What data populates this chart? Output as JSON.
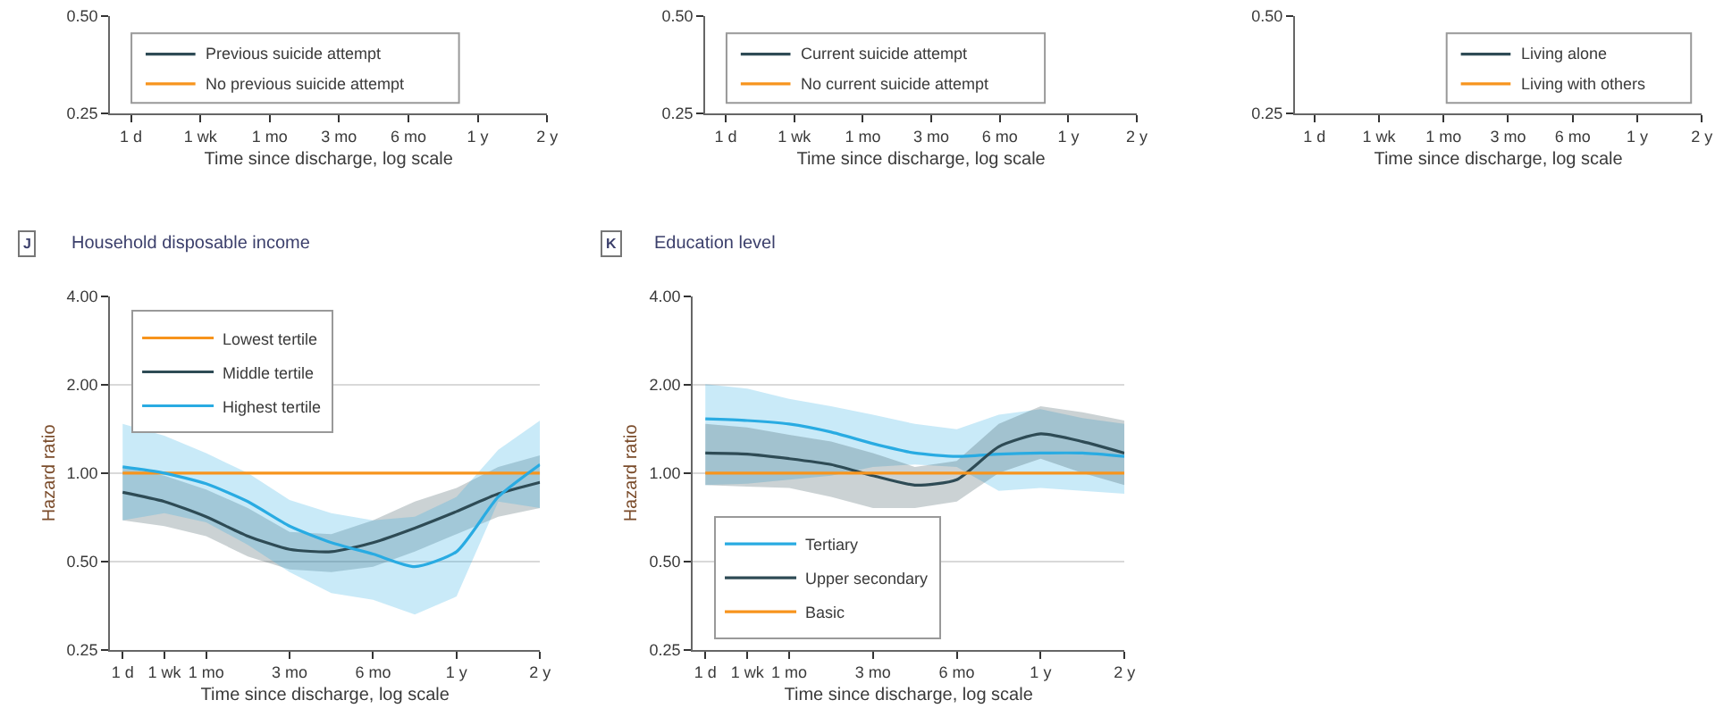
{
  "chart_data": [
    {
      "type": "line",
      "xlabel": "Time since discharge, log scale",
      "log": "y",
      "legend": "bottom left",
      "categories": [
        "1 d",
        "1 wk",
        "1 mo",
        "3 mo",
        "6 mo",
        "1 y",
        "2 y"
      ],
      "ylim": [
        0.25,
        0.5
      ],
      "yticks": [
        {
          "value": 0.25,
          "label": "0.25"
        },
        {
          "value": 0.5,
          "label": "0.50"
        }
      ],
      "series": [
        {
          "name": "Previous suicide attempt",
          "color": "#2e4b55",
          "values": [
            null,
            null,
            null,
            null,
            null,
            null,
            null
          ]
        },
        {
          "name": "No previous suicide attempt",
          "color": "#f7941d",
          "values": [
            null,
            null,
            null,
            null,
            null,
            null,
            null
          ]
        }
      ]
    },
    {
      "type": "line",
      "xlabel": "Time since discharge, log scale",
      "log": "y",
      "legend": "bottom left",
      "categories": [
        "1 d",
        "1 wk",
        "1 mo",
        "3 mo",
        "6 mo",
        "1 y",
        "2 y"
      ],
      "ylim": [
        0.25,
        0.5
      ],
      "yticks": [
        {
          "value": 0.25,
          "label": "0.25"
        },
        {
          "value": 0.5,
          "label": "0.50"
        }
      ],
      "series": [
        {
          "name": "Current suicide attempt",
          "color": "#2e4b55",
          "values": [
            null,
            null,
            null,
            null,
            null,
            null,
            null
          ]
        },
        {
          "name": "No current suicide attempt",
          "color": "#f7941d",
          "values": [
            null,
            null,
            null,
            null,
            null,
            null,
            null
          ]
        }
      ]
    },
    {
      "type": "line",
      "xlabel": "Time since discharge, log scale",
      "log": "y",
      "legend": "bottom right",
      "categories": [
        "1 d",
        "1 wk",
        "1 mo",
        "3 mo",
        "6 mo",
        "1 y",
        "2 y"
      ],
      "ylim": [
        0.25,
        0.5
      ],
      "yticks": [
        {
          "value": 0.25,
          "label": "0.25"
        },
        {
          "value": 0.5,
          "label": "0.50"
        }
      ],
      "series": [
        {
          "name": "Living alone",
          "color": "#2e4b55",
          "values": [
            null,
            null,
            null,
            null,
            null,
            null,
            null
          ]
        },
        {
          "name": "Living with others",
          "color": "#f7941d",
          "values": [
            null,
            null,
            null,
            null,
            null,
            null,
            null
          ]
        }
      ]
    },
    {
      "type": "line",
      "title": "Household disposable income",
      "annotations": [
        "J"
      ],
      "xlabel": "Time since discharge, log scale",
      "ylabel": "Hazard ratio",
      "log": "y",
      "grid": "y",
      "legend": "top left",
      "categories": [
        "1 d",
        "1 wk",
        "1 mo",
        null,
        "3 mo",
        null,
        "6 mo",
        null,
        "1 y",
        null,
        "2 y"
      ],
      "ylim": [
        0.25,
        4
      ],
      "yticks": [
        {
          "value": 0.25,
          "label": "0.25"
        },
        {
          "value": 0.5,
          "label": "0.50"
        },
        {
          "value": 1,
          "label": "1.00"
        },
        {
          "value": 2,
          "label": "2.00"
        },
        {
          "value": 4,
          "label": "4.00"
        }
      ],
      "series": [
        {
          "name": "Lowest tertile",
          "color": "#f7941d",
          "values": [
            1,
            1,
            1,
            1,
            1,
            1,
            1,
            1,
            1,
            1,
            1
          ]
        },
        {
          "name": "Middle tertile",
          "color": "#2e4b55",
          "values": [
            0.86,
            0.8,
            0.71,
            0.61,
            0.55,
            0.54,
            0.58,
            0.65,
            0.74,
            0.85,
            0.93
          ],
          "lower": [
            0.69,
            0.66,
            0.61,
            0.52,
            0.47,
            0.46,
            0.48,
            0.54,
            0.62,
            0.71,
            0.76
          ],
          "upper": [
            1.05,
            0.98,
            0.88,
            0.76,
            0.63,
            0.62,
            0.69,
            0.8,
            0.89,
            1.05,
            1.15
          ]
        },
        {
          "name": "Highest tertile",
          "color": "#29abe2",
          "values": [
            1.05,
            1.0,
            0.92,
            0.8,
            0.66,
            0.58,
            0.53,
            0.48,
            0.54,
            0.83,
            1.07
          ],
          "lower": [
            0.69,
            0.73,
            0.68,
            0.57,
            0.46,
            0.39,
            0.37,
            0.33,
            0.38,
            0.8,
            0.76
          ],
          "upper": [
            1.47,
            1.34,
            1.17,
            1.0,
            0.81,
            0.73,
            0.69,
            0.71,
            0.83,
            1.2,
            1.51
          ]
        }
      ]
    },
    {
      "type": "line",
      "title": "Education level",
      "annotations": [
        "K"
      ],
      "xlabel": "Time since discharge, log scale",
      "ylabel": "Hazard ratio",
      "log": "y",
      "grid": "y",
      "legend": "bottom left",
      "categories": [
        "1 d",
        "1 wk",
        "1 mo",
        null,
        "3 mo",
        null,
        "6 mo",
        null,
        "1 y",
        null,
        "2 y"
      ],
      "ylim": [
        0.25,
        4
      ],
      "yticks": [
        {
          "value": 0.25,
          "label": "0.25"
        },
        {
          "value": 0.5,
          "label": "0.50"
        },
        {
          "value": 1,
          "label": "1.00"
        },
        {
          "value": 2,
          "label": "2.00"
        },
        {
          "value": 4,
          "label": "4.00"
        }
      ],
      "series": [
        {
          "name": "Tertiary",
          "color": "#29abe2",
          "values": [
            1.53,
            1.51,
            1.47,
            1.38,
            1.26,
            1.17,
            1.14,
            1.16,
            1.17,
            1.17,
            1.14
          ],
          "lower": [
            0.91,
            0.92,
            0.95,
            0.98,
            1.05,
            1.07,
            1.05,
            0.87,
            0.89,
            0.87,
            0.85
          ],
          "upper": [
            2.01,
            1.94,
            1.79,
            1.69,
            1.58,
            1.47,
            1.41,
            1.58,
            1.65,
            1.54,
            1.47
          ]
        },
        {
          "name": "Upper secondary",
          "color": "#2e4b55",
          "values": [
            1.17,
            1.16,
            1.12,
            1.07,
            0.98,
            0.91,
            0.95,
            1.23,
            1.36,
            1.28,
            1.17
          ],
          "lower": [
            0.91,
            0.9,
            0.89,
            0.83,
            0.76,
            0.76,
            0.8,
            1.0,
            1.12,
            1.0,
            0.91
          ],
          "upper": [
            1.47,
            1.43,
            1.35,
            1.28,
            1.17,
            1.05,
            1.1,
            1.47,
            1.69,
            1.61,
            1.51
          ]
        },
        {
          "name": "Basic",
          "color": "#f7941d",
          "values": [
            1,
            1,
            1,
            1,
            1,
            1,
            1,
            1,
            1,
            1,
            1
          ]
        }
      ]
    }
  ]
}
